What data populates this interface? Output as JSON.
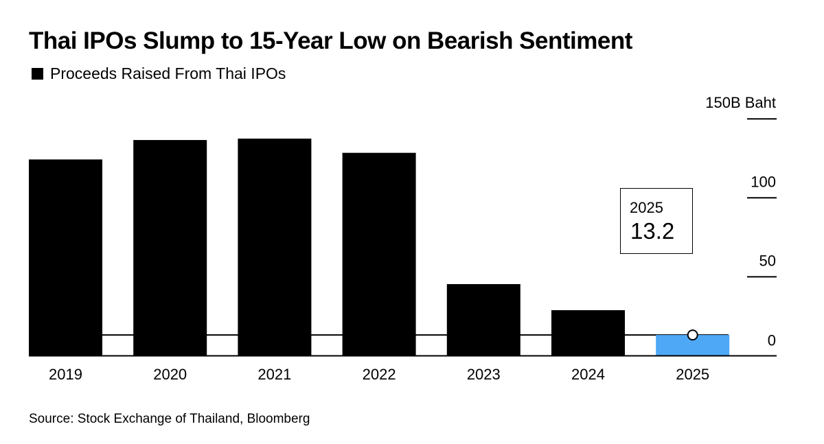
{
  "title": "Thai IPOs Slump to 15-Year Low on Bearish Sentiment",
  "source": "Source: Stock Exchange of Thailand, Bloomberg",
  "chart_data": {
    "type": "bar",
    "title": "Thai IPOs Slump to 15-Year Low on Bearish Sentiment",
    "legend": [
      "Proceeds Raised From Thai IPOs"
    ],
    "legend_placement": "top-left",
    "categories": [
      "2019",
      "2020",
      "2021",
      "2022",
      "2023",
      "2024",
      "2025"
    ],
    "series": [
      {
        "name": "Proceeds Raised From Thai IPOs",
        "values": [
          124.3,
          136.6,
          137.5,
          128.5,
          45.4,
          28.9,
          13.2
        ]
      }
    ],
    "unit": "B Baht",
    "ylim": [
      0,
      150
    ],
    "yticks": [
      0,
      50,
      100,
      150
    ],
    "ytick_labels": [
      "0",
      "50",
      "100",
      "150B Baht"
    ],
    "y_axis_side": "right",
    "reference_line": 13.2,
    "annotation": {
      "label": "2025",
      "value": "13.2"
    },
    "colors": {
      "bar": "#000000",
      "highlight": "#4ea8f5"
    },
    "highlight_category": "2025",
    "grid": false
  }
}
